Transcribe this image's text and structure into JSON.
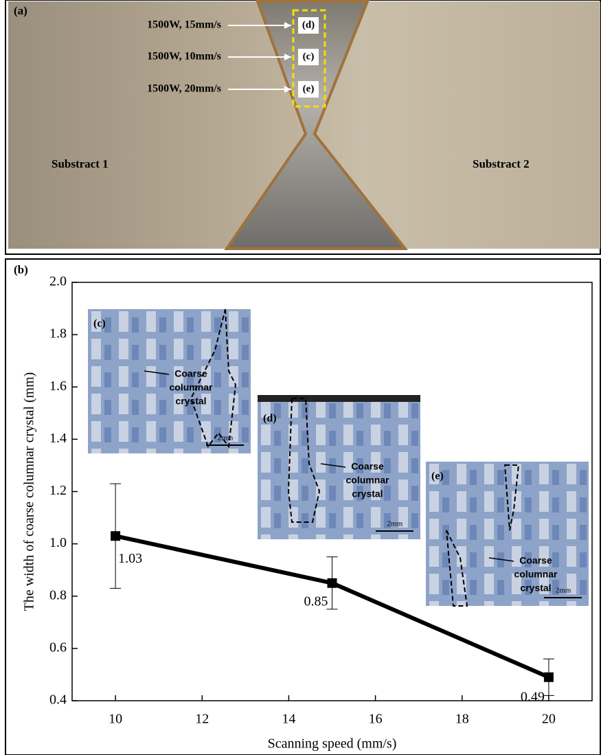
{
  "panel_a": {
    "label": "(a)",
    "annotations": [
      {
        "text": "1500W, 15mm/s",
        "box": "(d)"
      },
      {
        "text": "1500W, 10mm/s",
        "box": "(c)"
      },
      {
        "text": "1500W, 20mm/s",
        "box": "(e)"
      }
    ],
    "regions": [
      "Substract 1",
      "Substract 2"
    ]
  },
  "chart_data": {
    "type": "line",
    "panel_label": "(b)",
    "xlabel": "Scanning speed (mm/s)",
    "ylabel": "The width of coarse columnar crystal (mm)",
    "x": [
      10,
      15,
      20
    ],
    "series": [
      {
        "color": "#000000",
        "values": [
          1.03,
          0.85,
          0.49
        ],
        "errors": [
          0.2,
          0.1,
          0.07
        ]
      }
    ],
    "xlim": [
      9,
      21
    ],
    "xticks": [
      10,
      12,
      14,
      16,
      18,
      20
    ],
    "ylim": [
      0.4,
      2.0
    ],
    "yticks": [
      0.4,
      0.6,
      0.8,
      {
        "value": 1,
        "label": "1.0"
      },
      1.2,
      1.4,
      1.6,
      1.8,
      {
        "value": 2,
        "label": "2.0"
      }
    ],
    "insets": [
      {
        "label": "(c)",
        "annotation": [
          "Coarse",
          "columnar",
          "crystal"
        ],
        "scale": "2mm"
      },
      {
        "label": "(d)",
        "annotation": [
          "Coarse",
          "columnar",
          "crystal"
        ],
        "scale": "2mm"
      },
      {
        "label": "(e)",
        "annotation": [
          "Coarse",
          "columnar",
          "crystal"
        ],
        "scale": "2mm"
      }
    ]
  }
}
